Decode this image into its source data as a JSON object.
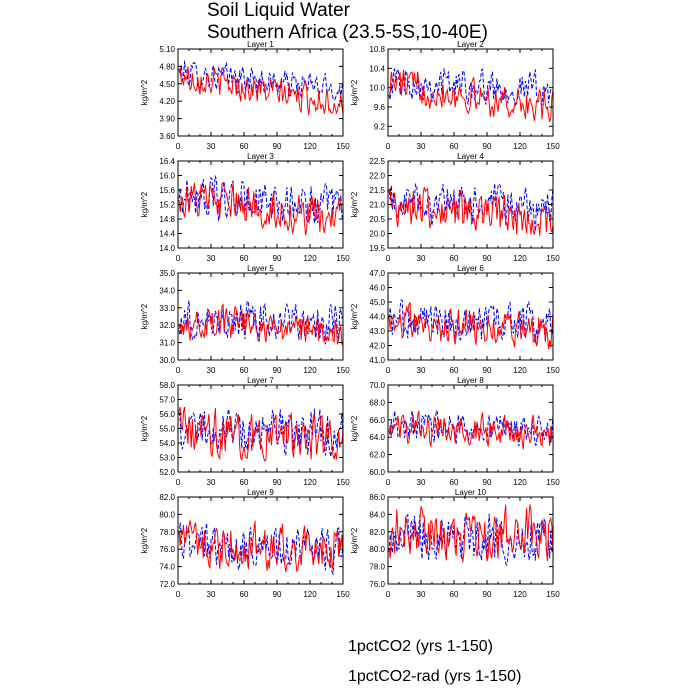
{
  "title": {
    "line1": "Soil Liquid Water",
    "line2": "Southern Africa (23.5-5S,10-40E)"
  },
  "colors": {
    "series_1pctCO2": "#0000ff",
    "series_1pctCO2_rad": "#ff0000"
  },
  "legend": {
    "items": [
      {
        "label": "1pctCO2 (yrs 1-150)",
        "color": "#0000ff",
        "style": "dashed"
      },
      {
        "label": "1pctCO2-rad (yrs 1-150)",
        "color": "#ff0000",
        "style": "solid"
      }
    ]
  },
  "chart_data": [
    {
      "type": "line",
      "title": "Layer 1",
      "ylabel": "kg/m^2",
      "xlim": [
        0,
        150
      ],
      "ylim": [
        3.6,
        5.1
      ],
      "xticks": [
        "0",
        "30",
        "60",
        "90",
        "120",
        "150"
      ],
      "yticks": [
        "3.60",
        "3.90",
        "4.20",
        "4.50",
        "4.80",
        "5.10"
      ],
      "ylabel_side": "left",
      "series": [
        {
          "name": "1pctCO2 (yrs 1-150)",
          "style": "dashed",
          "start": 4.7,
          "end": 4.4,
          "amp": 0.13
        },
        {
          "name": "1pctCO2-rad (yrs 1-150)",
          "style": "solid",
          "start": 4.65,
          "end": 4.15,
          "amp": 0.14
        }
      ]
    },
    {
      "type": "line",
      "title": "Layer 2",
      "ylabel": "kg/m^2",
      "xlim": [
        0,
        150
      ],
      "ylim": [
        9.0,
        10.8
      ],
      "xticks": [
        "0",
        "30",
        "60",
        "90",
        "120",
        "150"
      ],
      "yticks": [
        "9.2",
        "9.6",
        "10.0",
        "10.4",
        "10.8"
      ],
      "ylabel_side": "right",
      "series": [
        {
          "name": "1pctCO2 (yrs 1-150)",
          "style": "dashed",
          "start": 10.15,
          "end": 9.95,
          "amp": 0.2
        },
        {
          "name": "1pctCO2-rad (yrs 1-150)",
          "style": "solid",
          "start": 10.1,
          "end": 9.55,
          "amp": 0.2
        }
      ]
    },
    {
      "type": "line",
      "title": "Layer 3",
      "ylabel": "kg/m^2",
      "xlim": [
        0,
        150
      ],
      "ylim": [
        14.0,
        16.4
      ],
      "xticks": [
        "0",
        "30",
        "60",
        "90",
        "120",
        "150"
      ],
      "yticks": [
        "14.0",
        "14.4",
        "14.8",
        "15.2",
        "15.6",
        "16.0",
        "16.4"
      ],
      "ylabel_side": "left",
      "series": [
        {
          "name": "1pctCO2 (yrs 1-150)",
          "style": "dashed",
          "start": 15.45,
          "end": 15.1,
          "amp": 0.3
        },
        {
          "name": "1pctCO2-rad (yrs 1-150)",
          "style": "solid",
          "start": 15.4,
          "end": 14.75,
          "amp": 0.3
        }
      ]
    },
    {
      "type": "line",
      "title": "Layer 4",
      "ylabel": "kg/m^2",
      "xlim": [
        0,
        150
      ],
      "ylim": [
        19.5,
        22.5
      ],
      "xticks": [
        "0",
        "30",
        "60",
        "90",
        "120",
        "150"
      ],
      "yticks": [
        "19.5",
        "20.0",
        "20.5",
        "21.0",
        "21.5",
        "22.0",
        "22.5"
      ],
      "ylabel_side": "right",
      "series": [
        {
          "name": "1pctCO2 (yrs 1-150)",
          "style": "dashed",
          "start": 21.1,
          "end": 20.85,
          "amp": 0.38
        },
        {
          "name": "1pctCO2-rad (yrs 1-150)",
          "style": "solid",
          "start": 21.05,
          "end": 20.35,
          "amp": 0.38
        }
      ]
    },
    {
      "type": "line",
      "title": "Layer 5",
      "ylabel": "kg/m^2",
      "xlim": [
        0,
        150
      ],
      "ylim": [
        30.0,
        35.0
      ],
      "xticks": [
        "0",
        "30",
        "60",
        "90",
        "120",
        "150"
      ],
      "yticks": [
        "30.0",
        "31.0",
        "32.0",
        "33.0",
        "34.0",
        "35.0"
      ],
      "ylabel_side": "left",
      "series": [
        {
          "name": "1pctCO2 (yrs 1-150)",
          "style": "dashed",
          "start": 32.3,
          "end": 32.1,
          "amp": 0.6
        },
        {
          "name": "1pctCO2-rad (yrs 1-150)",
          "style": "solid",
          "start": 32.3,
          "end": 31.6,
          "amp": 0.55
        }
      ]
    },
    {
      "type": "line",
      "title": "Layer 6",
      "ylabel": "kg/m^2",
      "xlim": [
        0,
        150
      ],
      "ylim": [
        41.0,
        47.0
      ],
      "xticks": [
        "0",
        "30",
        "60",
        "90",
        "120",
        "150"
      ],
      "yticks": [
        "41.0",
        "42.0",
        "43.0",
        "44.0",
        "45.0",
        "46.0",
        "47.0"
      ],
      "ylabel_side": "right",
      "series": [
        {
          "name": "1pctCO2 (yrs 1-150)",
          "style": "dashed",
          "start": 43.7,
          "end": 43.6,
          "amp": 0.75
        },
        {
          "name": "1pctCO2-rad (yrs 1-150)",
          "style": "solid",
          "start": 43.7,
          "end": 42.9,
          "amp": 0.7
        }
      ]
    },
    {
      "type": "line",
      "title": "Layer 7",
      "ylabel": "kg/m^2",
      "xlim": [
        0,
        150
      ],
      "ylim": [
        52.0,
        58.0
      ],
      "xticks": [
        "0",
        "30",
        "60",
        "90",
        "120",
        "150"
      ],
      "yticks": [
        "52.0",
        "53.0",
        "54.0",
        "55.0",
        "56.0",
        "57.0",
        "58.0"
      ],
      "ylabel_side": "left",
      "series": [
        {
          "name": "1pctCO2 (yrs 1-150)",
          "style": "dashed",
          "start": 54.9,
          "end": 54.7,
          "amp": 0.85
        },
        {
          "name": "1pctCO2-rad (yrs 1-150)",
          "style": "solid",
          "start": 54.9,
          "end": 54.2,
          "amp": 0.85
        }
      ]
    },
    {
      "type": "line",
      "title": "Layer 8",
      "ylabel": "kg/m^2",
      "xlim": [
        0,
        150
      ],
      "ylim": [
        60.0,
        70.0
      ],
      "xticks": [
        "0",
        "30",
        "60",
        "90",
        "120",
        "150"
      ],
      "yticks": [
        "60.0",
        "62.0",
        "64.0",
        "66.0",
        "68.0",
        "70.0"
      ],
      "ylabel_side": "right",
      "series": [
        {
          "name": "1pctCO2 (yrs 1-150)",
          "style": "dashed",
          "start": 65.2,
          "end": 64.8,
          "amp": 1.0
        },
        {
          "name": "1pctCO2-rad (yrs 1-150)",
          "style": "solid",
          "start": 65.1,
          "end": 64.5,
          "amp": 1.0
        }
      ]
    },
    {
      "type": "line",
      "title": "Layer 9",
      "ylabel": "kg/m^2",
      "xlim": [
        0,
        150
      ],
      "ylim": [
        72.0,
        82.0
      ],
      "xticks": [
        "0",
        "30",
        "60",
        "90",
        "120",
        "150"
      ],
      "yticks": [
        "72.0",
        "74.0",
        "76.0",
        "78.0",
        "80.0",
        "82.0"
      ],
      "ylabel_side": "left",
      "series": [
        {
          "name": "1pctCO2 (yrs 1-150)",
          "style": "dashed",
          "start": 76.6,
          "end": 75.8,
          "amp": 1.4
        },
        {
          "name": "1pctCO2-rad (yrs 1-150)",
          "style": "solid",
          "start": 76.8,
          "end": 76.2,
          "amp": 1.5
        }
      ]
    },
    {
      "type": "line",
      "title": "Layer 10",
      "ylabel": "kg/m^2",
      "xlim": [
        0,
        150
      ],
      "ylim": [
        76.0,
        86.0
      ],
      "xticks": [
        "0",
        "30",
        "60",
        "90",
        "120",
        "150"
      ],
      "yticks": [
        "76.0",
        "78.0",
        "80.0",
        "82.0",
        "84.0",
        "86.0"
      ],
      "ylabel_side": "right",
      "series": [
        {
          "name": "1pctCO2 (yrs 1-150)",
          "style": "dashed",
          "start": 81.5,
          "end": 81.0,
          "amp": 1.5
        },
        {
          "name": "1pctCO2-rad (yrs 1-150)",
          "style": "solid",
          "start": 82.0,
          "end": 81.8,
          "amp": 1.6
        }
      ]
    }
  ]
}
